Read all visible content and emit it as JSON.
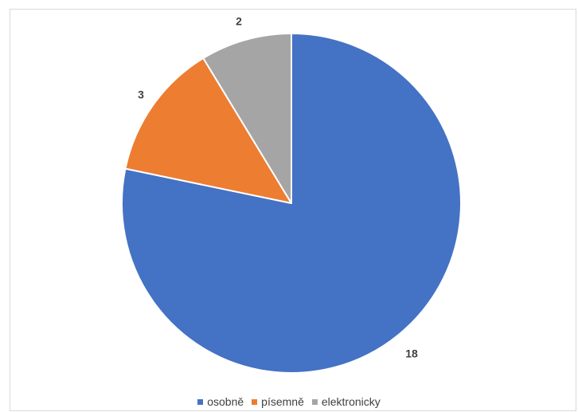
{
  "chart_data": {
    "type": "pie",
    "categories": [
      "osobně",
      "písemně",
      "elektronicky"
    ],
    "values": [
      18,
      3,
      2
    ],
    "colors": [
      "#4472C4",
      "#ED7D31",
      "#A5A5A5"
    ],
    "data_labels": [
      "18",
      "3",
      "2"
    ],
    "legend_position": "bottom",
    "start": "top, clockwise"
  }
}
